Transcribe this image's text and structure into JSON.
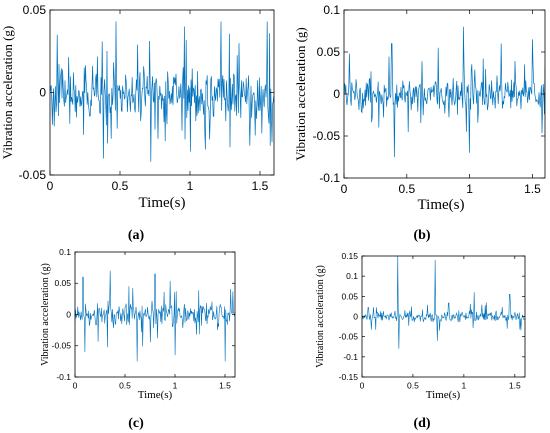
{
  "figure": {
    "panels": [
      {
        "caption": "(a)"
      },
      {
        "caption": "(b)"
      },
      {
        "caption": "(c)"
      },
      {
        "caption": "(d)"
      }
    ]
  },
  "chart_data": [
    {
      "type": "line",
      "xlabel": "Time(s)",
      "ylabel": "Vibration acceleration (g)",
      "xlim": [
        0,
        1.6
      ],
      "ylim": [
        -0.05,
        0.05
      ],
      "xticks": [
        0,
        0.5,
        1,
        1.5
      ],
      "yticks": [
        -0.05,
        0,
        0.05
      ],
      "xtick_labels": [
        "0",
        "0.5",
        "1",
        "1.5"
      ],
      "ytick_labels": [
        "-0.05",
        "0",
        "0.05"
      ],
      "grid": false,
      "line_color": "#0072BD",
      "signal": {
        "x_start": 0,
        "x_end": 1.6,
        "noise_amplitude": 0.015,
        "typical_peak": 0.03,
        "bias": -0.002,
        "spikes": [
          [
            0.05,
            0.035
          ],
          [
            0.38,
            0.045
          ],
          [
            0.38,
            -0.04
          ],
          [
            0.47,
            0.043
          ],
          [
            0.72,
            -0.042
          ],
          [
            0.96,
            0.04
          ],
          [
            1.22,
            0.043
          ],
          [
            1.55,
            0.043
          ]
        ]
      }
    },
    {
      "type": "line",
      "xlabel": "Time(s)",
      "ylabel": "Vibration acceleration (g)",
      "xlim": [
        0,
        1.6
      ],
      "ylim": [
        -0.1,
        0.1
      ],
      "xticks": [
        0,
        0.5,
        1,
        1.5
      ],
      "yticks": [
        -0.1,
        -0.05,
        0,
        0.05,
        0.1
      ],
      "xtick_labels": [
        "0",
        "0.5",
        "1",
        "1.5"
      ],
      "ytick_labels": [
        "-0.1",
        "-0.05",
        "0",
        "0.05",
        "0.1"
      ],
      "grid": false,
      "line_color": "#0072BD",
      "signal": {
        "x_start": 0,
        "x_end": 1.6,
        "noise_amplitude": 0.02,
        "typical_peak": 0.04,
        "bias": 0,
        "spikes": [
          [
            0.38,
            0.06
          ],
          [
            0.4,
            -0.075
          ],
          [
            0.75,
            0.055
          ],
          [
            0.95,
            0.08
          ],
          [
            1.0,
            -0.07
          ],
          [
            1.25,
            0.06
          ],
          [
            1.5,
            0.065
          ]
        ]
      }
    },
    {
      "type": "line",
      "xlabel": "Time(s)",
      "ylabel": "Vibration acceleration (g)",
      "xlim": [
        0,
        1.6
      ],
      "ylim": [
        -0.1,
        0.1
      ],
      "xticks": [
        0,
        0.5,
        1,
        1.5
      ],
      "yticks": [
        -0.1,
        -0.05,
        0,
        0.05,
        0.1
      ],
      "xtick_labels": [
        "0",
        "0.5",
        "1",
        "1.5"
      ],
      "ytick_labels": [
        "-0.1",
        "-0.05",
        "0",
        "0.05",
        "0.1"
      ],
      "grid": false,
      "line_color": "#0072BD",
      "signal": {
        "x_start": 0,
        "x_end": 1.6,
        "noise_amplitude": 0.018,
        "typical_peak": 0.045,
        "bias": 0,
        "spikes": [
          [
            0.08,
            0.06
          ],
          [
            0.1,
            -0.06
          ],
          [
            0.35,
            0.07
          ],
          [
            0.62,
            -0.075
          ],
          [
            0.8,
            0.065
          ],
          [
            1.0,
            -0.065
          ],
          [
            1.5,
            -0.075
          ]
        ]
      }
    },
    {
      "type": "line",
      "xlabel": "Time(s)",
      "ylabel": "Vibration acceleration (g)",
      "xlim": [
        0,
        1.6
      ],
      "ylim": [
        -0.15,
        0.15
      ],
      "xticks": [
        0,
        0.5,
        1,
        1.5
      ],
      "yticks": [
        -0.15,
        -0.1,
        -0.05,
        0,
        0.05,
        0.1,
        0.15
      ],
      "xtick_labels": [
        "0",
        "0.5",
        "1",
        "1.5"
      ],
      "ytick_labels": [
        "-0.15",
        "-0.1",
        "-0.05",
        "0",
        "0.05",
        "0.1",
        "0.15"
      ],
      "grid": false,
      "line_color": "#0072BD",
      "signal": {
        "x_start": 0,
        "x_end": 1.6,
        "noise_amplitude": 0.012,
        "typical_peak": 0.03,
        "bias": 0,
        "spikes": [
          [
            0.35,
            0.15
          ],
          [
            0.36,
            -0.08
          ],
          [
            0.72,
            0.14
          ],
          [
            0.74,
            -0.06
          ],
          [
            1.1,
            0.06
          ],
          [
            1.45,
            0.055
          ]
        ]
      }
    }
  ]
}
